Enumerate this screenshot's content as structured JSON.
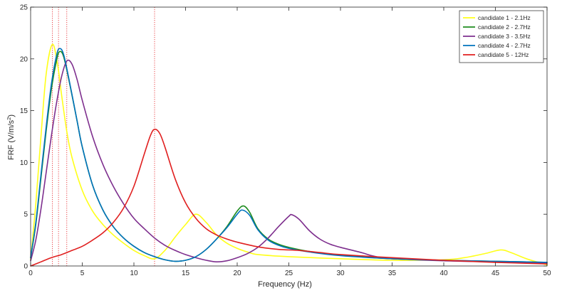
{
  "chart_data": {
    "type": "line",
    "xlabel": "Frequency (Hz)",
    "ylabel_main": "FRF (V/m/s",
    "ylabel_sup": "2",
    "ylabel_close": ")",
    "xlim": [
      0,
      50
    ],
    "ylim": [
      0,
      25
    ],
    "xticks": [
      0,
      5,
      10,
      15,
      20,
      25,
      30,
      35,
      40,
      45,
      50
    ],
    "yticks": [
      0,
      5,
      10,
      15,
      20,
      25
    ],
    "grid": false,
    "legend_position": "top-right",
    "vlines": {
      "color": "#e8393c",
      "style": "dotted",
      "x": [
        2.1,
        2.7,
        3.5,
        12
      ]
    },
    "series": [
      {
        "name": "candidate 1 - 2.1Hz",
        "color": "#ffff1a",
        "points": [
          [
            0,
            0.6
          ],
          [
            0.5,
            6
          ],
          [
            1,
            12.5
          ],
          [
            1.5,
            18.5
          ],
          [
            2.1,
            21.4
          ],
          [
            2.6,
            19.5
          ],
          [
            3,
            16.5
          ],
          [
            3.5,
            13
          ],
          [
            4,
            10.5
          ],
          [
            5,
            7.3
          ],
          [
            6,
            5.3
          ],
          [
            7,
            4
          ],
          [
            8,
            3
          ],
          [
            9,
            2.2
          ],
          [
            10,
            1.5
          ],
          [
            11,
            1
          ],
          [
            12,
            0.7
          ],
          [
            13,
            1.5
          ],
          [
            14,
            2.8
          ],
          [
            15,
            4
          ],
          [
            16,
            5
          ],
          [
            17,
            4.2
          ],
          [
            18,
            3
          ],
          [
            19,
            2.2
          ],
          [
            20,
            1.7
          ],
          [
            21,
            1.35
          ],
          [
            22,
            1.1
          ],
          [
            25,
            0.9
          ],
          [
            30,
            0.7
          ],
          [
            35,
            0.55
          ],
          [
            40,
            0.6
          ],
          [
            42,
            0.8
          ],
          [
            44,
            1.2
          ],
          [
            45.5,
            1.55
          ],
          [
            46.5,
            1.3
          ],
          [
            48,
            0.7
          ],
          [
            50,
            0.1
          ]
        ]
      },
      {
        "name": "candidate 2 - 2.7Hz",
        "color": "#1f8c1f",
        "points": [
          [
            0,
            0.8
          ],
          [
            0.5,
            4
          ],
          [
            1,
            8.5
          ],
          [
            1.5,
            13
          ],
          [
            2,
            17
          ],
          [
            2.5,
            19.8
          ],
          [
            2.8,
            20.7
          ],
          [
            3.2,
            20.2
          ],
          [
            3.8,
            17.5
          ],
          [
            4.5,
            14
          ],
          [
            5,
            11.5
          ],
          [
            6,
            7.8
          ],
          [
            7,
            5.4
          ],
          [
            8,
            3.8
          ],
          [
            9,
            2.7
          ],
          [
            10,
            1.9
          ],
          [
            11,
            1.3
          ],
          [
            12,
            0.9
          ],
          [
            13,
            0.6
          ],
          [
            14,
            0.45
          ],
          [
            15,
            0.55
          ],
          [
            16,
            0.9
          ],
          [
            17,
            1.6
          ],
          [
            18,
            2.6
          ],
          [
            19,
            3.8
          ],
          [
            20,
            5.3
          ],
          [
            20.6,
            5.8
          ],
          [
            21.2,
            5.2
          ],
          [
            22,
            3.6
          ],
          [
            23,
            2.6
          ],
          [
            24,
            2.1
          ],
          [
            25,
            1.8
          ],
          [
            27,
            1.4
          ],
          [
            30,
            1.05
          ],
          [
            35,
            0.7
          ],
          [
            40,
            0.55
          ],
          [
            45,
            0.45
          ],
          [
            50,
            0.35
          ]
        ]
      },
      {
        "name": "candidate 3 - 3.5Hz",
        "color": "#7e2f8e",
        "points": [
          [
            0,
            0.5
          ],
          [
            0.5,
            2.5
          ],
          [
            1,
            5.5
          ],
          [
            1.5,
            9
          ],
          [
            2,
            12.5
          ],
          [
            2.5,
            15.7
          ],
          [
            3,
            18.3
          ],
          [
            3.5,
            19.8
          ],
          [
            4,
            19.5
          ],
          [
            4.5,
            18
          ],
          [
            5,
            16
          ],
          [
            6,
            12.5
          ],
          [
            7,
            9.8
          ],
          [
            8,
            7.7
          ],
          [
            9,
            6
          ],
          [
            10,
            4.6
          ],
          [
            11,
            3.6
          ],
          [
            12,
            2.7
          ],
          [
            13,
            2
          ],
          [
            14,
            1.5
          ],
          [
            15,
            1.1
          ],
          [
            16,
            0.8
          ],
          [
            17,
            0.55
          ],
          [
            18,
            0.4
          ],
          [
            19,
            0.5
          ],
          [
            20,
            0.8
          ],
          [
            21,
            1.2
          ],
          [
            22,
            1.8
          ],
          [
            23,
            2.7
          ],
          [
            24,
            3.8
          ],
          [
            25,
            4.8
          ],
          [
            25.3,
            4.95
          ],
          [
            26,
            4.5
          ],
          [
            27,
            3.4
          ],
          [
            28,
            2.6
          ],
          [
            29,
            2.1
          ],
          [
            30,
            1.8
          ],
          [
            32,
            1.3
          ],
          [
            33,
            1
          ],
          [
            34,
            0.8
          ],
          [
            35,
            0.7
          ],
          [
            40,
            0.5
          ],
          [
            45,
            0.4
          ],
          [
            50,
            0.3
          ]
        ]
      },
      {
        "name": "candidate 4 - 2.7Hz",
        "color": "#0072bd",
        "points": [
          [
            0,
            0.8
          ],
          [
            0.5,
            4.2
          ],
          [
            1,
            8.8
          ],
          [
            1.5,
            13.4
          ],
          [
            2,
            17.5
          ],
          [
            2.5,
            20.3
          ],
          [
            2.8,
            21
          ],
          [
            3.2,
            20.4
          ],
          [
            3.8,
            17.6
          ],
          [
            4.5,
            14
          ],
          [
            5,
            11.5
          ],
          [
            6,
            7.8
          ],
          [
            7,
            5.4
          ],
          [
            8,
            3.8
          ],
          [
            9,
            2.7
          ],
          [
            10,
            1.9
          ],
          [
            11,
            1.3
          ],
          [
            12,
            0.9
          ],
          [
            13,
            0.6
          ],
          [
            14,
            0.45
          ],
          [
            15,
            0.55
          ],
          [
            16,
            0.9
          ],
          [
            17,
            1.6
          ],
          [
            18,
            2.6
          ],
          [
            19,
            3.7
          ],
          [
            20,
            5
          ],
          [
            20.5,
            5.4
          ],
          [
            21.2,
            4.9
          ],
          [
            22,
            3.5
          ],
          [
            23,
            2.5
          ],
          [
            24,
            2
          ],
          [
            25,
            1.7
          ],
          [
            27,
            1.35
          ],
          [
            30,
            1
          ],
          [
            35,
            0.7
          ],
          [
            40,
            0.55
          ],
          [
            45,
            0.45
          ],
          [
            50,
            0.35
          ]
        ]
      },
      {
        "name": "candidate 5 - 12Hz",
        "color": "#e01f1f",
        "points": [
          [
            0,
            0
          ],
          [
            1,
            0.4
          ],
          [
            2,
            0.8
          ],
          [
            3,
            1.1
          ],
          [
            4,
            1.5
          ],
          [
            5,
            1.9
          ],
          [
            6,
            2.5
          ],
          [
            7,
            3.2
          ],
          [
            8,
            4.2
          ],
          [
            9,
            5.6
          ],
          [
            10,
            7.7
          ],
          [
            11,
            10.8
          ],
          [
            11.6,
            12.6
          ],
          [
            12,
            13.2
          ],
          [
            12.5,
            12.8
          ],
          [
            13,
            11.5
          ],
          [
            14,
            8.4
          ],
          [
            15,
            6.1
          ],
          [
            16,
            4.6
          ],
          [
            17,
            3.6
          ],
          [
            18,
            3
          ],
          [
            19,
            2.6
          ],
          [
            20,
            2.3
          ],
          [
            22,
            1.85
          ],
          [
            24,
            1.6
          ],
          [
            26,
            1.5
          ],
          [
            28,
            1.3
          ],
          [
            30,
            1.1
          ],
          [
            35,
            0.8
          ],
          [
            40,
            0.55
          ],
          [
            45,
            0.35
          ],
          [
            50,
            0.2
          ]
        ]
      }
    ]
  }
}
